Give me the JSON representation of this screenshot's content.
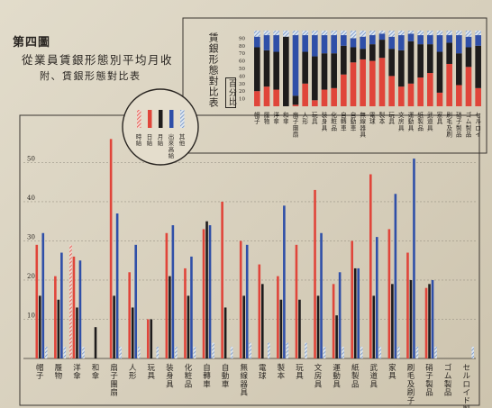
{
  "header": {
    "figure_label": "第四圖",
    "title": "從業員賃銀形態別平均月收",
    "subtitle": "附、賃銀形態對比表"
  },
  "legend": {
    "title": "",
    "items": [
      {
        "label": "時給",
        "swatch": "hatch-red"
      },
      {
        "label": "日給",
        "swatch": "red"
      },
      {
        "label": "月給",
        "swatch": "black"
      },
      {
        "label": "出來高給",
        "swatch": "blue"
      },
      {
        "label": "其他",
        "swatch": "hatch-blue"
      }
    ]
  },
  "colors": {
    "red": "#e0453a",
    "black": "#1e1c1c",
    "blue": "#2f4fa8",
    "hatch_red": "#e0453a",
    "hatch_blue": "#6f8fc4",
    "paper": "#d9d2c0"
  },
  "chart_data": [
    {
      "type": "bar",
      "title": "",
      "ylim": [
        0,
        57
      ],
      "yticks": [
        "10",
        "20",
        "30",
        "40",
        "50"
      ],
      "series_order": [
        "時給",
        "日給",
        "月給",
        "出來高給",
        "其他"
      ],
      "categories": [
        "帽子",
        "履物",
        "洋傘",
        "和傘",
        "扇子團扇",
        "人形",
        "玩具",
        "装身具",
        "化粧品",
        "自轉車",
        "自動車",
        "無線器具",
        "電球",
        "製本",
        "玩具",
        "文房具",
        "運動具",
        "紙製品",
        "武道具",
        "家具",
        "刷毛及刷子",
        "硝子製品",
        "ゴム製品",
        "セルロイド製品"
      ],
      "series": [
        {
          "name": "時給",
          "values": [
            0,
            0,
            29,
            0,
            0,
            0,
            0,
            0,
            0,
            0,
            0,
            0,
            0,
            0,
            0,
            0,
            0,
            0,
            0,
            0,
            0,
            0,
            0,
            0
          ]
        },
        {
          "name": "日給",
          "values": [
            29,
            21,
            26,
            0,
            56,
            22,
            10,
            32,
            23,
            33,
            40,
            30,
            24,
            21,
            29,
            43,
            19,
            30,
            47,
            33,
            27,
            18,
            0,
            0
          ]
        },
        {
          "name": "月給",
          "values": [
            16,
            15,
            13,
            8,
            16,
            13,
            10,
            21,
            16,
            35,
            13,
            16,
            19,
            15,
            15,
            16,
            11,
            23,
            16,
            19,
            20,
            19,
            0,
            0
          ]
        },
        {
          "name": "出來高給",
          "values": [
            32,
            27,
            25,
            0,
            37,
            29,
            0,
            34,
            26,
            34,
            0,
            29,
            0,
            39,
            0,
            32,
            22,
            23,
            31,
            42,
            51,
            20,
            0,
            0
          ]
        },
        {
          "name": "其他",
          "values": [
            3,
            3,
            3,
            0,
            3,
            3,
            3,
            3,
            3,
            4,
            3,
            4,
            4,
            4,
            4,
            3,
            3,
            3,
            3,
            3,
            3,
            3,
            0,
            3
          ]
        }
      ],
      "grid": true
    },
    {
      "type": "bar",
      "stacked": true,
      "title": "賃銀形態對比表",
      "unit": "百分比",
      "ylim": [
        0,
        100
      ],
      "yticks": [
        "10",
        "20",
        "30",
        "40",
        "50",
        "60",
        "70",
        "80",
        "90"
      ],
      "categories": [
        "帽子",
        "履物",
        "洋傘",
        "和傘",
        "扇子團扇",
        "人形",
        "玩具",
        "装身具",
        "化粧品",
        "自轉車",
        "自動車",
        "無線器具",
        "電球",
        "製本",
        "玩具",
        "文房具",
        "運動具",
        "紙製品",
        "武道具",
        "家具",
        "刷毛及刷子",
        "硝子製品",
        "ゴム製品",
        "セルロイド製品"
      ],
      "series": [
        {
          "name": "時給",
          "values": [
            0,
            0,
            0,
            0,
            0,
            0,
            0,
            0,
            0,
            0,
            0,
            0,
            0,
            0,
            0,
            0,
            0,
            0,
            0,
            0,
            0,
            0,
            0,
            0
          ]
        },
        {
          "name": "日給",
          "values": [
            20,
            26,
            22,
            0,
            2,
            30,
            8,
            22,
            24,
            42,
            58,
            62,
            60,
            64,
            40,
            26,
            30,
            38,
            44,
            18,
            56,
            28,
            52,
            24
          ]
        },
        {
          "name": "月給",
          "values": [
            58,
            48,
            50,
            92,
            12,
            42,
            58,
            48,
            46,
            38,
            20,
            14,
            22,
            24,
            36,
            48,
            56,
            44,
            38,
            54,
            28,
            42,
            26,
            56
          ]
        },
        {
          "name": "出來高給",
          "values": [
            14,
            20,
            22,
            0,
            80,
            22,
            28,
            24,
            24,
            14,
            12,
            16,
            12,
            8,
            16,
            20,
            10,
            12,
            12,
            22,
            10,
            24,
            14,
            14
          ]
        },
        {
          "name": "其他",
          "values": [
            8,
            6,
            6,
            8,
            6,
            6,
            6,
            6,
            6,
            6,
            10,
            8,
            6,
            4,
            8,
            6,
            4,
            6,
            6,
            6,
            6,
            6,
            8,
            6
          ]
        }
      ]
    }
  ]
}
